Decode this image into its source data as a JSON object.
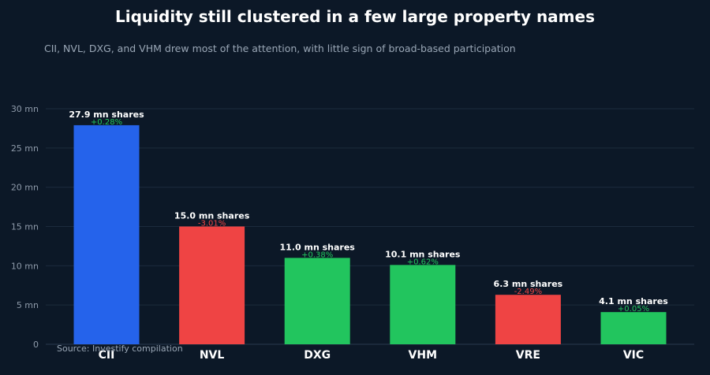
{
  "chart_data": {
    "type": "bar",
    "title": "Liquidity still clustered in a few large property names",
    "subtitle": "CII, NVL, DXG, and VHM drew most of the attention, with little sign of broad-based participation",
    "source": "Source: Investify compilation",
    "categories": [
      "CII",
      "NVL",
      "DXG",
      "VHM",
      "VRE",
      "VIC"
    ],
    "values": [
      27.9,
      15.0,
      11.0,
      10.1,
      6.3,
      4.1
    ],
    "value_labels": [
      "27.9 mn shares",
      "15.0 mn shares",
      "11.0 mn shares",
      "10.1 mn shares",
      "6.3 mn shares",
      "4.1 mn shares"
    ],
    "changes": [
      "+0.28%",
      "-3.01%",
      "+0.38%",
      "+0.62%",
      "-2.49%",
      "+0.05%"
    ],
    "bar_colors": [
      "#2563eb",
      "#ef4444",
      "#22c55e",
      "#22c55e",
      "#ef4444",
      "#22c55e"
    ],
    "change_colors": {
      "positive": "#22c55e",
      "negative": "#ef4444"
    },
    "ylim": [
      0,
      30
    ],
    "yticks": [
      0,
      5,
      10,
      15,
      20,
      25,
      30
    ],
    "ytick_labels": [
      "0",
      "5 mn",
      "10 mn",
      "15 mn",
      "20 mn",
      "25 mn",
      "30 mn"
    ],
    "grid": true,
    "legend": "none"
  }
}
